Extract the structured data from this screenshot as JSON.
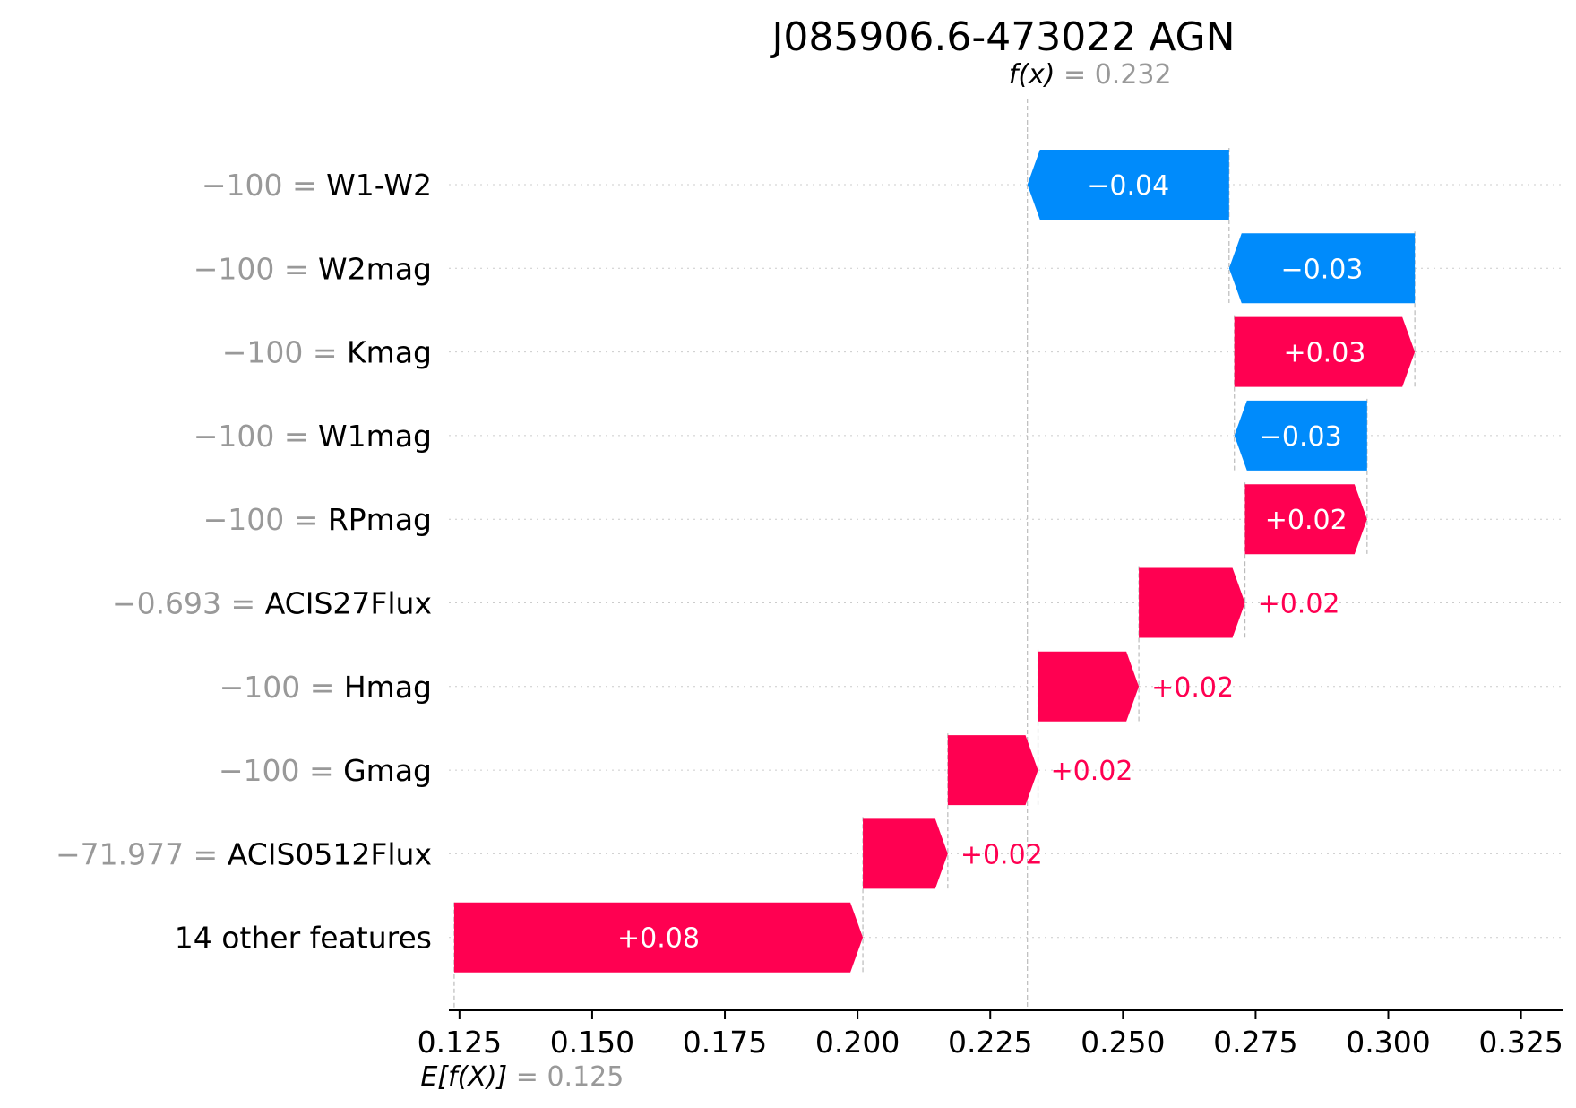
{
  "chart_data": {
    "type": "waterfall",
    "title": "J085906.6-473022 AGN",
    "fx": {
      "label": "f(x)",
      "value": "0.232",
      "x": 0.232
    },
    "ex": {
      "label": "E[f(X)]",
      "value": "0.125",
      "x": 0.125
    },
    "xlim": [
      0.123,
      0.333
    ],
    "xticks": [
      "0.125",
      "0.150",
      "0.175",
      "0.200",
      "0.225",
      "0.250",
      "0.275",
      "0.300",
      "0.325"
    ],
    "features": [
      {
        "value_text": "−100 = ",
        "name": "W1-W2",
        "label": "−0.04",
        "contribution": -0.038
      },
      {
        "value_text": "−100 = ",
        "name": "W2mag",
        "label": "−0.03",
        "contribution": -0.035
      },
      {
        "value_text": "−100 = ",
        "name": "Kmag",
        "label": "+0.03",
        "contribution": 0.034
      },
      {
        "value_text": "−100 = ",
        "name": "W1mag",
        "label": "−0.03",
        "contribution": -0.025
      },
      {
        "value_text": "−100 = ",
        "name": "RPmag",
        "label": "+0.02",
        "contribution": 0.023
      },
      {
        "value_text": "−0.693 = ",
        "name": "ACIS27Flux",
        "label": "+0.02",
        "contribution": 0.02
      },
      {
        "value_text": "−100 = ",
        "name": "Hmag",
        "label": "+0.02",
        "contribution": 0.019
      },
      {
        "value_text": "−100 = ",
        "name": "Gmag",
        "label": "+0.02",
        "contribution": 0.017
      },
      {
        "value_text": "−71.977 = ",
        "name": "ACIS0512Flux",
        "label": "+0.02",
        "contribution": 0.016
      },
      {
        "value_text": "",
        "name": "14 other features",
        "label": "+0.08",
        "contribution": 0.077
      }
    ],
    "colors": {
      "positive": "#ff0051",
      "negative": "#008bfb",
      "axis": "#000000",
      "muted": "#999999"
    }
  }
}
